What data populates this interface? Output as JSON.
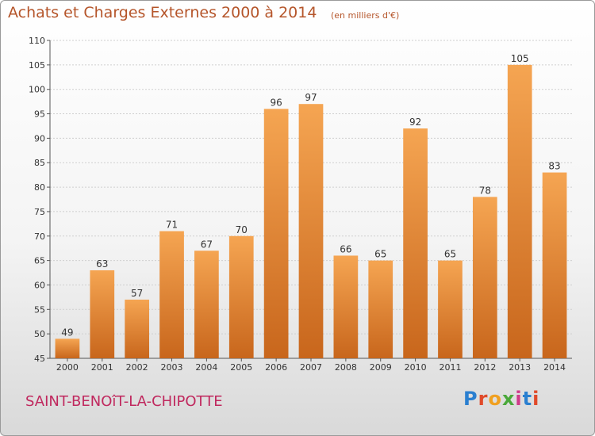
{
  "header": {
    "title": "Achats et Charges Externes 2000 à 2014",
    "subtitle": "(en milliers d'€)"
  },
  "footer": {
    "place": "SAINT-BENOîT-LA-CHIPOTTE",
    "logo_letters": [
      "P",
      "r",
      "o",
      "x",
      "i",
      "t",
      "i"
    ]
  },
  "colors": {
    "bar_top": "#f5a552",
    "bar_bottom": "#c8661c",
    "title": "#b5552a",
    "place": "#c0285e"
  },
  "chart_data": {
    "type": "bar",
    "categories": [
      "2000",
      "2001",
      "2002",
      "2003",
      "2004",
      "2005",
      "2006",
      "2007",
      "2008",
      "2009",
      "2010",
      "2011",
      "2012",
      "2013",
      "2014"
    ],
    "values": [
      49,
      63,
      57,
      71,
      67,
      70,
      96,
      97,
      66,
      65,
      92,
      65,
      78,
      105,
      83
    ],
    "data_labels": [
      "49",
      "63",
      "57",
      "71",
      "67",
      "70",
      "96",
      "97",
      "66",
      "65",
      "92",
      "65",
      "78",
      "105",
      "83"
    ],
    "title": "Achats et Charges Externes 2000 à 2014",
    "xlabel": "",
    "ylabel": "",
    "ylim": [
      45,
      110
    ],
    "yticks": [
      "45",
      "50",
      "55",
      "60",
      "65",
      "70",
      "75",
      "80",
      "85",
      "90",
      "95",
      "100",
      "105",
      "110"
    ],
    "grid": true,
    "legend": "none"
  }
}
